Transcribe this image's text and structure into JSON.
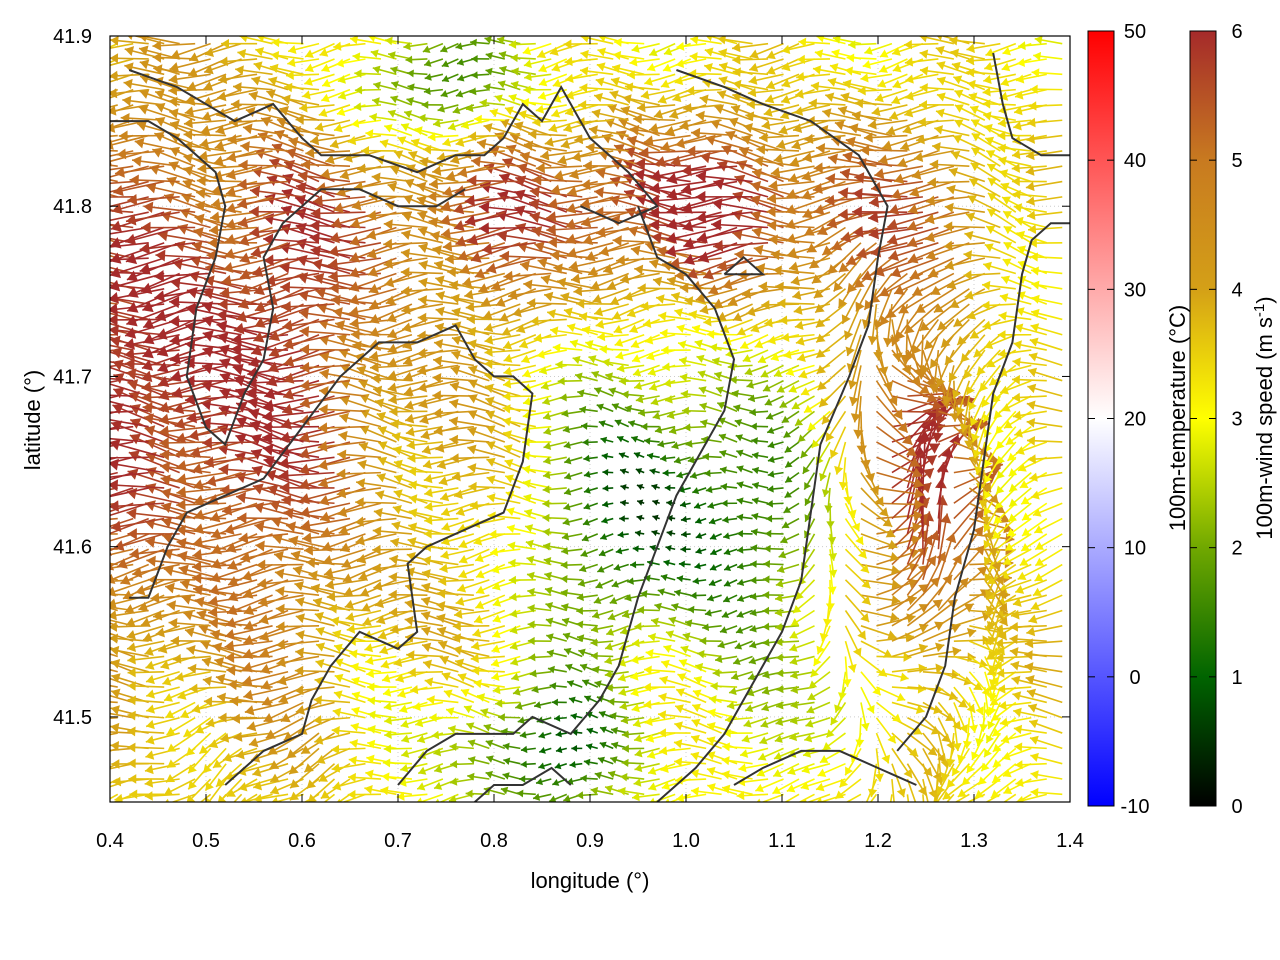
{
  "chart_data": {
    "type": "vector-field",
    "xlabel": "longitude (°)",
    "ylabel": "latitude (°)",
    "xlim": [
      0.4,
      1.4
    ],
    "ylim": [
      41.45,
      41.9
    ],
    "xticks": [
      "0.4",
      "0.5",
      "0.6",
      "0.7",
      "0.8",
      "0.9",
      "1.0",
      "1.1",
      "1.2",
      "1.3",
      "1.4"
    ],
    "yticks": [
      "41.5",
      "41.6",
      "41.7",
      "41.8",
      "41.9"
    ],
    "grid": true,
    "background_field": {
      "name": "100m-temperature (°C)",
      "range": [
        -10,
        50
      ],
      "ticks": [
        "-10",
        "0",
        "10",
        "20",
        "30",
        "40",
        "50"
      ],
      "colors": [
        "#0000ff",
        "#ffffff",
        "#ff0000"
      ],
      "approx_value": 20
    },
    "vectors": {
      "name": "100m-wind speed",
      "unit_base": "(m s",
      "unit_exp": "-1",
      "unit_close": ")",
      "range": [
        0,
        6
      ],
      "ticks": [
        "0",
        "1",
        "2",
        "3",
        "4",
        "5",
        "6"
      ],
      "colors": [
        "#000000",
        "#006400",
        "#70a800",
        "#ffff00",
        "#d4a017",
        "#c87a20",
        "#a52a2a"
      ],
      "dominant_direction": "westward",
      "regions": [
        {
          "area": "west (0.4–0.8°E, 41.6–41.85°N)",
          "speed": 6,
          "direction": "W"
        },
        {
          "area": "north-central (0.8–1.3°E, 41.75–41.85°N)",
          "speed": 6,
          "direction": "W"
        },
        {
          "area": "centre (0.85–1.15°E, 41.55–41.7°N)",
          "speed": 2,
          "direction": "W"
        },
        {
          "area": "east (1.17–1.35°E, 41.5–41.7°N)",
          "speed": 6,
          "direction": "N"
        },
        {
          "area": "south-west (0.4–0.6°E, 41.45–41.5°N)",
          "speed": 3,
          "direction": "SW"
        },
        {
          "area": "north-west (0.6–0.8°E, 41.85–41.9°N)",
          "speed": 2,
          "direction": "W"
        }
      ]
    },
    "contour_lines": {
      "color": "#333333",
      "meaning": "coastline / terrain contours"
    }
  }
}
